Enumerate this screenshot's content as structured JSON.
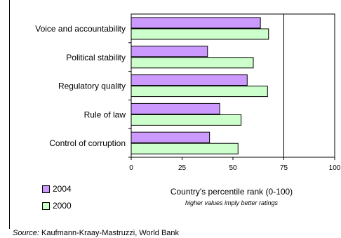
{
  "chart_data": {
    "type": "bar",
    "orientation": "horizontal",
    "categories": [
      "Voice and accountability",
      "Political stability",
      "Regulatory quality",
      "Rule of law",
      "Control of corruption"
    ],
    "series": [
      {
        "name": "2004",
        "values": [
          63.5,
          37.5,
          57,
          43.5,
          38.5
        ],
        "color": "#cc99ff"
      },
      {
        "name": "2000",
        "values": [
          67.5,
          60,
          67,
          54,
          52.5
        ],
        "color": "#ccffcc"
      }
    ],
    "xlim": [
      0,
      100
    ],
    "xticks": [
      "0",
      "25",
      "50",
      "75",
      "100"
    ],
    "reference_line": 75,
    "xlabel": "Country's percentile rank (0-100)",
    "xlabel_note": "higher values imply better ratings",
    "legend_position": "bottom-left",
    "grid": false
  },
  "source": {
    "prefix": "Source:",
    "text": "Kaufmann-Kraay-Mastruzzi, World Bank"
  }
}
